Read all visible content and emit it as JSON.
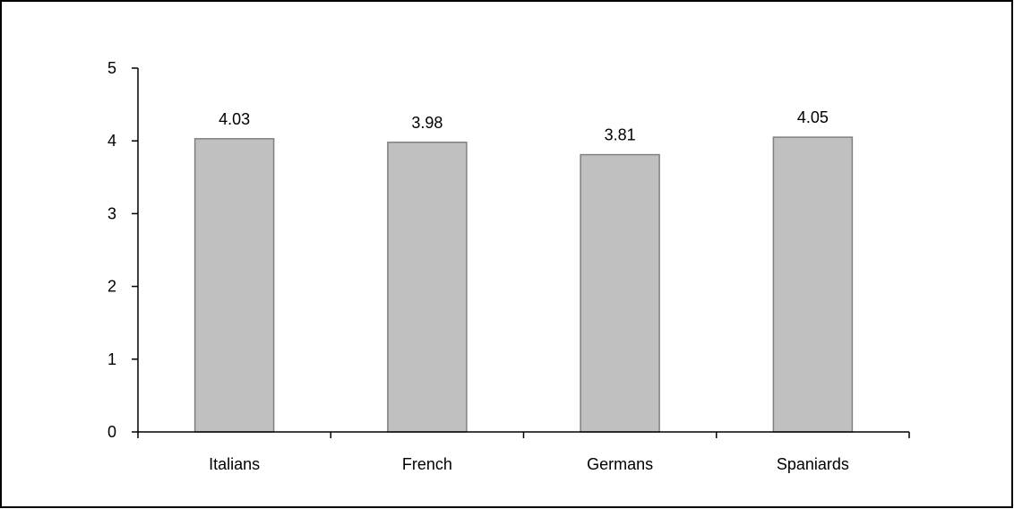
{
  "chart_data": {
    "type": "bar",
    "categories": [
      "Italians",
      "French",
      "Germans",
      "Spaniards"
    ],
    "values": [
      4.03,
      3.98,
      3.81,
      4.05
    ],
    "data_labels": [
      "4.03",
      "3.98",
      "3.81",
      "4.05"
    ],
    "title": "",
    "xlabel": "",
    "ylabel": "",
    "ylim": [
      0,
      5
    ],
    "yticks": [
      0,
      1,
      2,
      3,
      4,
      5
    ],
    "ytick_labels": [
      "0",
      "1",
      "2",
      "3",
      "4",
      "5"
    ],
    "grid": false,
    "legend": "none",
    "bar_color": "#c0c0c0",
    "bar_edge_color": "#808080",
    "axis_color": "#000000",
    "frame_color": "#000000"
  }
}
